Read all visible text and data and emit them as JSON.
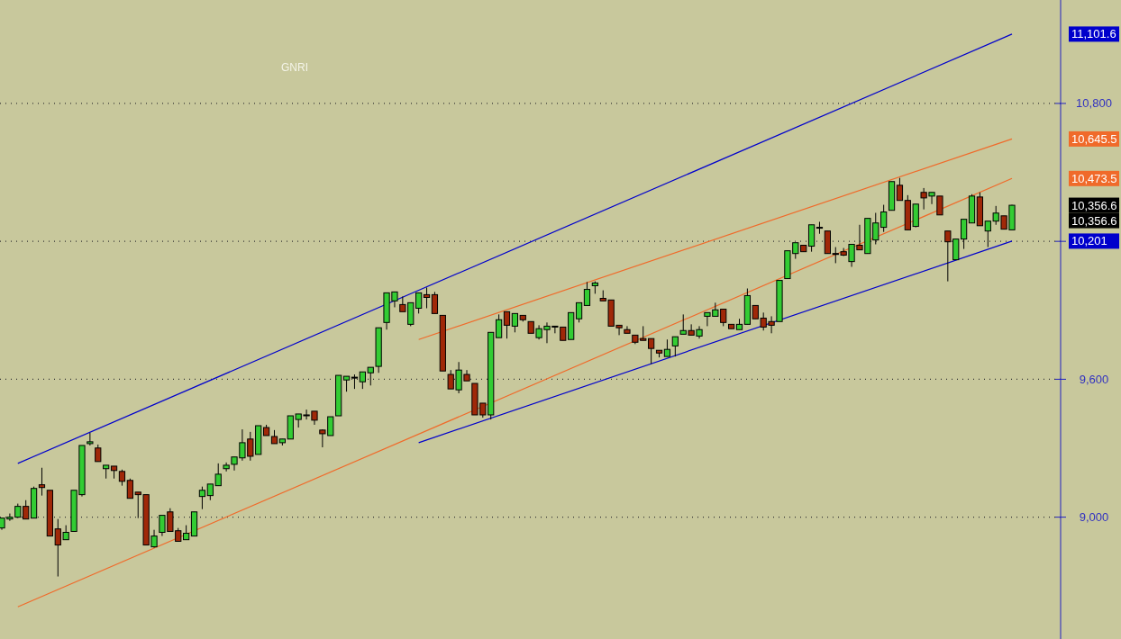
{
  "chart_data": {
    "type": "candlestick",
    "title": "GNRI",
    "categories": [
      null,
      null,
      null,
      null,
      null,
      null,
      null,
      null,
      null,
      null,
      null,
      null,
      null,
      null,
      null,
      null,
      null,
      null,
      null,
      null,
      null,
      null,
      null,
      null,
      null,
      null,
      null,
      null,
      null,
      null,
      null,
      null,
      null,
      null,
      null,
      null,
      null,
      null,
      null,
      null,
      null,
      null,
      null,
      null,
      null,
      null,
      null,
      null,
      null,
      null,
      null,
      null,
      null,
      null,
      null,
      null,
      null,
      null,
      null,
      null,
      null,
      null,
      null,
      null,
      null,
      null,
      null,
      null,
      null,
      null,
      null,
      null,
      null,
      null,
      null,
      null,
      null,
      null,
      null,
      null,
      null,
      null,
      null,
      null,
      null,
      null,
      null,
      null,
      null,
      null,
      null,
      null,
      null,
      null,
      null,
      null,
      null,
      null,
      null,
      null,
      null,
      null,
      null,
      null,
      null,
      null,
      null,
      null,
      null,
      null,
      null,
      null,
      null,
      null,
      null,
      null,
      null,
      null,
      null,
      null,
      null,
      null,
      null,
      null,
      null,
      null,
      null
    ],
    "ylim": [
      8470,
      11250
    ],
    "yticks": [
      {
        "value": 9000,
        "label": "9,000"
      },
      {
        "value": 9600,
        "label": "9,600"
      },
      {
        "value": 10200,
        "label": null
      },
      {
        "value": 10800,
        "label": "10,800"
      }
    ],
    "grid": "y",
    "ohlc": [
      [
        8953,
        8996,
        8945,
        8996
      ],
      [
        8992,
        9016,
        8984,
        9000
      ],
      [
        9000,
        9059,
        8996,
        9047
      ],
      [
        9047,
        9074,
        8992,
        8992
      ],
      [
        8996,
        9133,
        8996,
        9125
      ],
      [
        9141,
        9215,
        9094,
        9129
      ],
      [
        9117,
        9117,
        8918,
        8918
      ],
      [
        8949,
        8992,
        8742,
        8879
      ],
      [
        8902,
        8965,
        8902,
        8934
      ],
      [
        8938,
        9117,
        8938,
        9117
      ],
      [
        9098,
        9312,
        9090,
        9312
      ],
      [
        9320,
        9367,
        9312,
        9328
      ],
      [
        9301,
        9316,
        9242,
        9242
      ],
      [
        9211,
        9226,
        9168,
        9226
      ],
      [
        9222,
        9222,
        9168,
        9203
      ],
      [
        9199,
        9207,
        9137,
        9156
      ],
      [
        9160,
        9168,
        9082,
        9082
      ],
      [
        9109,
        9109,
        8996,
        9098
      ],
      [
        9098,
        9098,
        8879,
        8879
      ],
      [
        8871,
        8945,
        8867,
        8918
      ],
      [
        8934,
        9008,
        8918,
        9008
      ],
      [
        9023,
        9039,
        8938,
        8938
      ],
      [
        8941,
        8953,
        8895,
        8895
      ],
      [
        8902,
        8965,
        8902,
        8930
      ],
      [
        8918,
        9023,
        8918,
        9023
      ],
      [
        9090,
        9133,
        9035,
        9117
      ],
      [
        9094,
        9144,
        9074,
        9144
      ],
      [
        9137,
        9234,
        9137,
        9187
      ],
      [
        9211,
        9238,
        9199,
        9226
      ],
      [
        9230,
        9262,
        9203,
        9262
      ],
      [
        9258,
        9382,
        9246,
        9324
      ],
      [
        9340,
        9371,
        9246,
        9265
      ],
      [
        9273,
        9398,
        9273,
        9398
      ],
      [
        9390,
        9402,
        9355,
        9355
      ],
      [
        9351,
        9379,
        9320,
        9320
      ],
      [
        9324,
        9340,
        9312,
        9340
      ],
      [
        9340,
        9441,
        9340,
        9441
      ],
      [
        9425,
        9449,
        9390,
        9449
      ],
      [
        9445,
        9468,
        9425,
        9445
      ],
      [
        9461,
        9461,
        9402,
        9422
      ],
      [
        9379,
        9382,
        9304,
        9363
      ],
      [
        9355,
        9437,
        9355,
        9437
      ],
      [
        9441,
        9617,
        9441,
        9617
      ],
      [
        9597,
        9613,
        9546,
        9613
      ],
      [
        9609,
        9621,
        9558,
        9609
      ],
      [
        9589,
        9632,
        9558,
        9632
      ],
      [
        9628,
        9652,
        9573,
        9652
      ],
      [
        9656,
        9824,
        9628,
        9824
      ],
      [
        9847,
        9976,
        9816,
        9976
      ],
      [
        9941,
        9980,
        9913,
        9980
      ],
      [
        9925,
        9960,
        9894,
        9894
      ],
      [
        9839,
        9933,
        9831,
        9933
      ],
      [
        9909,
        9976,
        9886,
        9976
      ],
      [
        9968,
        9999,
        9909,
        9956
      ],
      [
        9968,
        9980,
        9886,
        9886
      ],
      [
        9878,
        9878,
        9636,
        9636
      ],
      [
        9621,
        9640,
        9558,
        9558
      ],
      [
        9554,
        9675,
        9539,
        9640
      ],
      [
        9621,
        9640,
        9593,
        9593
      ],
      [
        9582,
        9582,
        9445,
        9445
      ],
      [
        9496,
        9496,
        9433,
        9445
      ],
      [
        9445,
        9804,
        9425,
        9804
      ],
      [
        9781,
        9882,
        9781,
        9859
      ],
      [
        9894,
        9894,
        9777,
        9835
      ],
      [
        9831,
        9886,
        9804,
        9886
      ],
      [
        9878,
        9878,
        9851,
        9859
      ],
      [
        9851,
        9851,
        9800,
        9800
      ],
      [
        9781,
        9835,
        9773,
        9820
      ],
      [
        9816,
        9847,
        9757,
        9831
      ],
      [
        9831,
        9831,
        9800,
        9831
      ],
      [
        9827,
        9827,
        9769,
        9769
      ],
      [
        9773,
        9890,
        9773,
        9890
      ],
      [
        9863,
        9933,
        9847,
        9933
      ],
      [
        9921,
        10023,
        9921,
        9991
      ],
      [
        10007,
        10026,
        9972,
        10019
      ],
      [
        9952,
        9987,
        9941,
        9941
      ],
      [
        9945,
        9945,
        9831,
        9831
      ],
      [
        9835,
        9835,
        9792,
        9824
      ],
      [
        9816,
        9831,
        9800,
        9800
      ],
      [
        9792,
        9792,
        9753,
        9761
      ],
      [
        9777,
        9831,
        9769,
        9769
      ],
      [
        9777,
        9777,
        9667,
        9734
      ],
      [
        9726,
        9726,
        9695,
        9714
      ],
      [
        9699,
        9773,
        9699,
        9730
      ],
      [
        9745,
        9785,
        9699,
        9785
      ],
      [
        9796,
        9882,
        9796,
        9812
      ],
      [
        9812,
        9839,
        9792,
        9792
      ],
      [
        9788,
        9831,
        9777,
        9816
      ],
      [
        9874,
        9890,
        9831,
        9890
      ],
      [
        9874,
        9933,
        9874,
        9902
      ],
      [
        9905,
        9905,
        9831,
        9847
      ],
      [
        9839,
        9839,
        9820,
        9820
      ],
      [
        9816,
        9863,
        9816,
        9839
      ],
      [
        9839,
        9995,
        9839,
        9964
      ],
      [
        9921,
        9921,
        9863,
        9863
      ],
      [
        9866,
        9890,
        9812,
        9827
      ],
      [
        9851,
        9874,
        9800,
        9835
      ],
      [
        9851,
        10030,
        9851,
        10030
      ],
      [
        10038,
        10159,
        10038,
        10159
      ],
      [
        10147,
        10194,
        10124,
        10194
      ],
      [
        10183,
        10183,
        10155,
        10155
      ],
      [
        10179,
        10272,
        10155,
        10272
      ],
      [
        10261,
        10285,
        10233,
        10261
      ],
      [
        10245,
        10245,
        10147,
        10147
      ],
      [
        10147,
        10175,
        10105,
        10147
      ],
      [
        10155,
        10171,
        10136,
        10140
      ],
      [
        10112,
        10187,
        10089,
        10187
      ],
      [
        10183,
        10272,
        10163,
        10163
      ],
      [
        10147,
        10300,
        10147,
        10300
      ],
      [
        10206,
        10324,
        10187,
        10280
      ],
      [
        10261,
        10359,
        10241,
        10328
      ],
      [
        10335,
        10460,
        10335,
        10460
      ],
      [
        10444,
        10476,
        10378,
        10378
      ],
      [
        10378,
        10401,
        10250,
        10250
      ],
      [
        10265,
        10362,
        10261,
        10362
      ],
      [
        10413,
        10432,
        10339,
        10389
      ],
      [
        10397,
        10413,
        10362,
        10413
      ],
      [
        10397,
        10397,
        10315,
        10315
      ],
      [
        10245,
        10245,
        10026,
        10198
      ],
      [
        10120,
        10210,
        10120,
        10210
      ],
      [
        10210,
        10296,
        10167,
        10296
      ],
      [
        10280,
        10405,
        10280,
        10397
      ],
      [
        10393,
        10413,
        10268,
        10268
      ],
      [
        10245,
        10288,
        10175,
        10288
      ],
      [
        10288,
        10354,
        10272,
        10323
      ],
      [
        10311,
        10311,
        10253,
        10253
      ],
      [
        10250,
        10359,
        10250,
        10357
      ]
    ],
    "colors": [
      "#33cc33",
      "#33cc33",
      "#33cc33",
      "#a02808",
      "#33cc33",
      "#a02808",
      "#a02808",
      "#a02808",
      "#33cc33",
      "#33cc33",
      "#33cc33",
      "#33cc33",
      "#a02808",
      "#33cc33",
      "#a02808",
      "#a02808",
      "#a02808",
      "#a02808",
      "#a02808",
      "#33cc33",
      "#33cc33",
      "#a02808",
      "#a02808",
      "#33cc33",
      "#33cc33",
      "#33cc33",
      "#33cc33",
      "#33cc33",
      "#33cc33",
      "#33cc33",
      "#33cc33",
      "#a02808",
      "#33cc33",
      "#a02808",
      "#a02808",
      "#33cc33",
      "#33cc33",
      "#33cc33",
      "#000000",
      "#a02808",
      "#a02808",
      "#33cc33",
      "#33cc33",
      "#33cc33",
      "#000000",
      "#33cc33",
      "#33cc33",
      "#33cc33",
      "#33cc33",
      "#33cc33",
      "#a02808",
      "#33cc33",
      "#33cc33",
      "#a02808",
      "#a02808",
      "#a02808",
      "#a02808",
      "#33cc33",
      "#a02808",
      "#a02808",
      "#a02808",
      "#33cc33",
      "#33cc33",
      "#a02808",
      "#33cc33",
      "#a02808",
      "#a02808",
      "#33cc33",
      "#33cc33",
      "#000000",
      "#a02808",
      "#33cc33",
      "#33cc33",
      "#33cc33",
      "#33cc33",
      "#a02808",
      "#a02808",
      "#a02808",
      "#a02808",
      "#a02808",
      "#a02808",
      "#a02808",
      "#a02808",
      "#33cc33",
      "#33cc33",
      "#33cc33",
      "#a02808",
      "#33cc33",
      "#33cc33",
      "#33cc33",
      "#a02808",
      "#a02808",
      "#33cc33",
      "#33cc33",
      "#a02808",
      "#a02808",
      "#a02808",
      "#33cc33",
      "#33cc33",
      "#33cc33",
      "#a02808",
      "#33cc33",
      "#000000",
      "#a02808",
      "#000000",
      "#a02808",
      "#33cc33",
      "#a02808",
      "#33cc33",
      "#33cc33",
      "#33cc33",
      "#33cc33",
      "#a02808",
      "#a02808",
      "#33cc33",
      "#a02808",
      "#33cc33",
      "#a02808",
      "#a02808",
      "#33cc33",
      "#33cc33",
      "#33cc33",
      "#a02808",
      "#33cc33",
      "#33cc33",
      "#a02808",
      "#33cc33"
    ],
    "series": [
      {
        "type": "line",
        "color": "#0000cc",
        "values": [
          null,
          null,
          9234,
          null,
          null,
          null,
          null,
          null,
          null,
          null,
          null,
          null,
          null,
          null,
          null,
          null,
          null,
          null,
          null,
          null,
          null,
          null,
          null,
          null,
          null,
          null,
          null,
          null,
          null,
          null,
          null,
          null,
          null,
          null,
          null,
          null,
          null,
          null,
          null,
          null,
          null,
          null,
          null,
          null,
          null,
          null,
          null,
          null,
          null,
          null,
          null,
          null,
          null,
          null,
          null,
          null,
          null,
          null,
          null,
          null,
          null,
          null,
          null,
          null,
          null,
          null,
          null,
          null,
          null,
          null,
          null,
          null,
          null,
          null,
          null,
          null,
          null,
          null,
          null,
          null,
          null,
          null,
          null,
          null,
          null,
          null,
          null,
          null,
          null,
          null,
          null,
          null,
          null,
          null,
          null,
          null,
          null,
          null,
          null,
          null,
          null,
          null,
          null,
          null,
          null,
          null,
          null,
          null,
          null,
          null,
          null,
          null,
          null,
          null,
          null,
          null,
          null,
          null,
          null,
          null,
          null,
          null,
          null,
          null,
          null,
          null,
          11101.6
        ]
      },
      {
        "type": "line",
        "color": "#f06a2a",
        "values": [
          null,
          null,
          null,
          null,
          null,
          null,
          null,
          null,
          null,
          null,
          null,
          null,
          null,
          null,
          null,
          null,
          null,
          null,
          null,
          null,
          null,
          null,
          null,
          null,
          null,
          null,
          null,
          null,
          null,
          null,
          null,
          null,
          null,
          null,
          null,
          null,
          null,
          null,
          null,
          null,
          null,
          null,
          null,
          null,
          null,
          null,
          null,
          null,
          null,
          null,
          null,
          null,
          9773,
          null,
          null,
          null,
          null,
          null,
          null,
          null,
          null,
          null,
          null,
          null,
          null,
          null,
          null,
          null,
          null,
          null,
          null,
          null,
          null,
          null,
          null,
          null,
          null,
          null,
          null,
          null,
          null,
          null,
          null,
          null,
          null,
          null,
          null,
          null,
          null,
          null,
          null,
          null,
          null,
          null,
          null,
          null,
          null,
          null,
          null,
          null,
          null,
          null,
          null,
          null,
          null,
          null,
          null,
          null,
          null,
          null,
          null,
          null,
          null,
          null,
          null,
          null,
          null,
          null,
          null,
          null,
          null,
          null,
          null,
          null,
          null,
          null,
          10645.5
        ]
      },
      {
        "type": "line",
        "color": "#f06a2a",
        "values": [
          null,
          null,
          8610,
          null,
          null,
          null,
          null,
          null,
          null,
          null,
          null,
          null,
          null,
          null,
          null,
          null,
          null,
          null,
          null,
          null,
          null,
          null,
          null,
          null,
          null,
          null,
          null,
          null,
          null,
          null,
          null,
          null,
          null,
          null,
          null,
          null,
          null,
          null,
          null,
          null,
          null,
          null,
          null,
          null,
          null,
          null,
          null,
          null,
          null,
          null,
          null,
          null,
          null,
          null,
          null,
          null,
          null,
          null,
          null,
          null,
          null,
          null,
          null,
          null,
          null,
          null,
          null,
          null,
          null,
          null,
          null,
          null,
          null,
          null,
          null,
          null,
          null,
          null,
          null,
          null,
          null,
          null,
          null,
          null,
          null,
          null,
          null,
          null,
          null,
          null,
          null,
          null,
          null,
          null,
          null,
          null,
          null,
          null,
          null,
          null,
          null,
          null,
          null,
          null,
          null,
          null,
          null,
          null,
          null,
          null,
          null,
          null,
          null,
          null,
          null,
          null,
          null,
          null,
          null,
          null,
          null,
          null,
          null,
          null,
          null,
          null,
          10473.5
        ]
      },
      {
        "type": "line",
        "color": "#0000cc",
        "values": [
          null,
          null,
          null,
          null,
          null,
          null,
          null,
          null,
          null,
          null,
          null,
          null,
          null,
          null,
          null,
          null,
          null,
          null,
          null,
          null,
          null,
          null,
          null,
          null,
          null,
          null,
          null,
          null,
          null,
          null,
          null,
          null,
          null,
          null,
          null,
          null,
          null,
          null,
          null,
          null,
          null,
          null,
          null,
          null,
          null,
          null,
          null,
          null,
          null,
          null,
          null,
          null,
          9324,
          null,
          null,
          null,
          null,
          null,
          null,
          null,
          null,
          null,
          null,
          null,
          null,
          null,
          null,
          null,
          null,
          null,
          null,
          null,
          null,
          null,
          null,
          null,
          null,
          null,
          null,
          null,
          null,
          null,
          null,
          null,
          null,
          null,
          null,
          null,
          null,
          null,
          null,
          null,
          null,
          null,
          null,
          null,
          null,
          null,
          null,
          null,
          null,
          null,
          null,
          null,
          null,
          null,
          null,
          null,
          null,
          null,
          null,
          null,
          null,
          null,
          null,
          null,
          null,
          null,
          null,
          null,
          null,
          null,
          null,
          null,
          null,
          null,
          10201
        ]
      }
    ],
    "annotations": [
      "11,101.6",
      "10,645.5",
      "10,473.5",
      "10,201",
      "10,356.6",
      "10,356.6"
    ]
  }
}
